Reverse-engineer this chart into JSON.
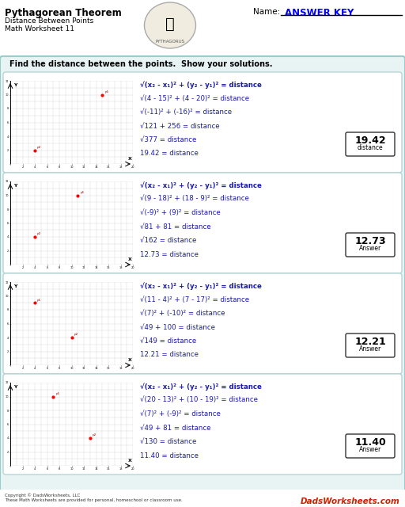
{
  "title": "Pythagorean Theorem",
  "subtitle1": "Distance Between Points",
  "subtitle2": "Math Worksheet 11",
  "name_label": "Name:",
  "answer_key": "ANSWER KEY",
  "instruction": "Find the distance between the points.  Show your solutions.",
  "bg_color": "#e8f4f4",
  "panel_bg": "#ffffff",
  "border_color": "#99cccc",
  "problems": [
    {
      "lines": [
        "√(x₂ - x₁)² + (y₂ - y₁)² = distance",
        "√(4 - 15)² + (4 - 20)² = distance",
        "√(-11)² + (-16)² = distance",
        "√121 + 256 = distance",
        "√377 = distance",
        "19.42 = distance"
      ],
      "answer": "19.42",
      "answer_label": "distance",
      "points": [
        [
          15,
          10
        ],
        [
          4,
          2
        ]
      ],
      "xlim": [
        0,
        20
      ],
      "ylim": [
        0,
        12
      ]
    },
    {
      "lines": [
        "√(x₂ - x₁)² + (y₂ - y₁)² = distance",
        "√(9 - 18)² + (18 - 9)² = distance",
        "√(-9)² + (9)² = distance",
        "√81 + 81 = distance",
        "√162 = distance",
        "12.73 = distance"
      ],
      "answer": "12.73",
      "answer_label": "Answer",
      "points": [
        [
          11,
          10
        ],
        [
          4,
          4
        ]
      ],
      "xlim": [
        0,
        20
      ],
      "ylim": [
        0,
        12
      ]
    },
    {
      "lines": [
        "√(x₂ - x₁)² + (y₂ - y₁)² = distance",
        "√(11 - 4)² + (7 - 17)² = distance",
        "√(7)² + (-10)² = distance",
        "√49 + 100 = distance",
        "√149 = distance",
        "12.21 = distance"
      ],
      "answer": "12.21",
      "answer_label": "Answer",
      "points": [
        [
          4,
          9
        ],
        [
          10,
          4
        ]
      ],
      "xlim": [
        0,
        20
      ],
      "ylim": [
        0,
        12
      ]
    },
    {
      "lines": [
        "√(x₂ - x₁)² + (y₂ - y₁)² = distance",
        "√(20 - 13)² + (10 - 19)² = distance",
        "√(7)² + (-9)² = distance",
        "√49 + 81 = distance",
        "√130 = distance",
        "11.40 = distance"
      ],
      "answer": "11.40",
      "answer_label": "Answer",
      "points": [
        [
          7,
          10
        ],
        [
          13,
          4
        ]
      ],
      "xlim": [
        0,
        20
      ],
      "ylim": [
        0,
        12
      ]
    }
  ],
  "footer_left": "Copyright © DadsWorksheets, LLC\nThese Math Worksheets are provided for personal, homeschool or classroom use.",
  "watermark": "DadsWorksheets.com"
}
